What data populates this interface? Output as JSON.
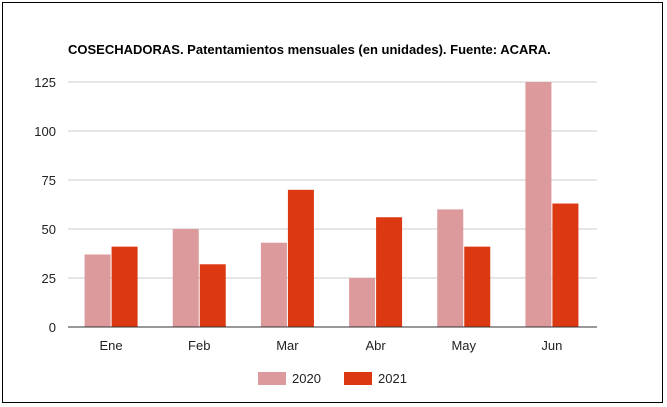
{
  "chart_data": {
    "type": "bar",
    "title": "COSECHADORAS. Patentamientos mensuales (en unidades). Fuente: ACARA.",
    "categories": [
      "Ene",
      "Feb",
      "Mar",
      "Abr",
      "May",
      "Jun"
    ],
    "series": [
      {
        "name": "2020",
        "color": "#dc9a9c",
        "values": [
          37,
          50,
          43,
          25,
          60,
          125
        ]
      },
      {
        "name": "2021",
        "color": "#dc3912",
        "values": [
          41,
          32,
          70,
          56,
          41,
          63
        ]
      }
    ],
    "yticks": [
      "0",
      "25",
      "50",
      "75",
      "100",
      "125"
    ],
    "ylim": [
      0,
      125
    ],
    "grid": true,
    "legend_position": "bottom"
  }
}
